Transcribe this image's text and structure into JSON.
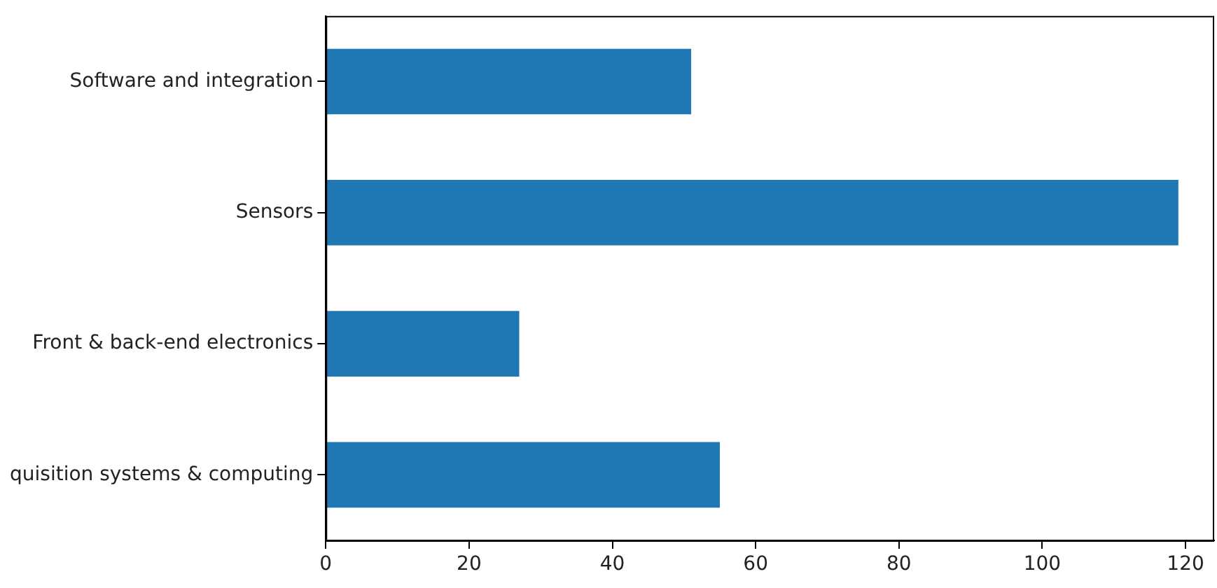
{
  "chart_data": {
    "type": "bar",
    "orientation": "horizontal",
    "categories": [
      "Software and integration",
      "Sensors",
      "Front & back-end electronics",
      "quisition systems & computing"
    ],
    "values": [
      51,
      119,
      27,
      55
    ],
    "color": "#1f77b4",
    "xlim": [
      0,
      124
    ],
    "xticks": [
      0,
      20,
      40,
      60,
      80,
      100,
      120
    ],
    "grid": false,
    "legend": false
  }
}
